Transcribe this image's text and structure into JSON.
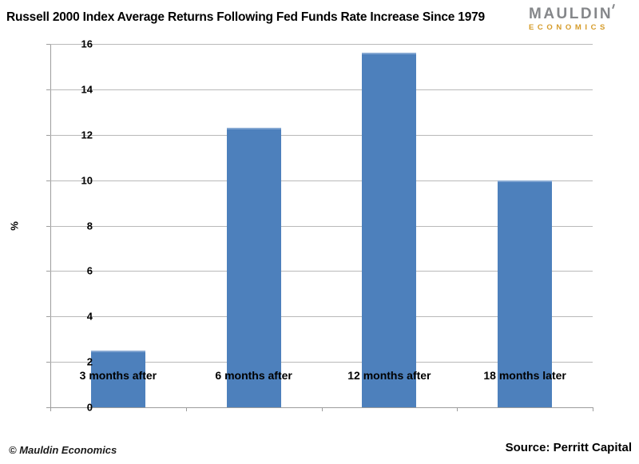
{
  "header": {
    "title": "Russell 2000 Index Average Returns Following Fed Funds Rate Increase Since 1979",
    "logo": {
      "line1": "MAULDIN",
      "line2": "ECONOMICS",
      "line1_color": "#85878a",
      "line2_color": "#d69c2b"
    }
  },
  "chart_data": {
    "type": "bar",
    "title": "Russell 2000 Index Average Returns Following Fed Funds Rate Increase Since 1979",
    "categories": [
      "3 months after",
      "6 months after",
      "12 months after",
      "18 months later"
    ],
    "values": [
      2.5,
      12.3,
      15.6,
      10.0
    ],
    "xlabel": "",
    "ylabel": "%",
    "ylim": [
      0,
      16
    ],
    "ytick_step": 2,
    "grid": true,
    "legend": false,
    "bar_color": "#4d80bc",
    "gridline_color": "#b9b9b9",
    "axis_color": "#9d9d9d"
  },
  "footer": {
    "copyright": "© Mauldin Economics",
    "source": "Source: Perritt Capital"
  }
}
